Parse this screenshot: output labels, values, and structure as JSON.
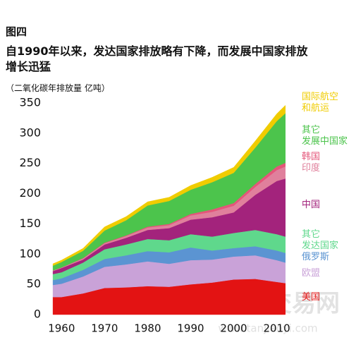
{
  "chart_data": {
    "type": "stacked-area",
    "figure_label": "图四",
    "title": "自1990年以来，发达国家排放略有下降，而发展中国家排放\n增长迅猛",
    "y_label": "（二氧化碳年排放量 亿吨）",
    "watermark": "中国碳交易网",
    "watermark_url": "www.tanjiaoyi.com",
    "x": [
      1958,
      1960,
      1965,
      1970,
      1975,
      1980,
      1985,
      1990,
      1995,
      2000,
      2005,
      2010,
      2012
    ],
    "xlim": [
      1957,
      2014
    ],
    "xticks": [
      1960,
      1970,
      1980,
      1990,
      2000,
      2010
    ],
    "ylim": [
      0,
      350
    ],
    "yticks": [
      0,
      50,
      100,
      150,
      200,
      250,
      300,
      350
    ],
    "grid": false,
    "series": [
      {
        "name": "美国",
        "color": "#e31313",
        "values": [
          29,
          29,
          35,
          44,
          45,
          47,
          46,
          50,
          53,
          58,
          59,
          54,
          52
        ]
      },
      {
        "name": "欧盟",
        "color": "#c9a2d8",
        "values": [
          20,
          22,
          28,
          35,
          38,
          41,
          38,
          40,
          38,
          38,
          39,
          36,
          34
        ]
      },
      {
        "name": "俄罗斯",
        "color": "#5b94d2",
        "values": [
          8,
          9,
          11,
          13,
          15,
          17,
          19,
          21,
          15,
          14,
          15,
          16,
          16
        ]
      },
      {
        "name": "其它\n发达国家",
        "color": "#5fd88c",
        "values": [
          10,
          10,
          12,
          16,
          18,
          20,
          20,
          22,
          23,
          25,
          27,
          27,
          27
        ]
      },
      {
        "name": "中国",
        "color": "#a3237c",
        "values": [
          5,
          7,
          5,
          8,
          11,
          15,
          20,
          24,
          32,
          34,
          58,
          88,
          96
        ]
      },
      {
        "name": "印度",
        "color": "#e0809c",
        "values": [
          1,
          1,
          2,
          2,
          3,
          4,
          5,
          7,
          9,
          11,
          13,
          18,
          20
        ]
      },
      {
        "name": "韩国",
        "color": "#e4567a",
        "values": [
          0,
          0,
          0.5,
          1,
          1,
          1.5,
          2,
          2.5,
          4,
          4.5,
          5,
          6,
          6
        ]
      },
      {
        "name": "其它\n发展中国家",
        "color": "#4cc44c",
        "values": [
          8,
          9,
          12,
          20,
          25,
          35,
          38,
          40,
          45,
          50,
          60,
          75,
          82
        ]
      },
      {
        "name": "国际航空\n和航运",
        "color": "#f0cc00",
        "values": [
          3,
          3,
          4,
          6,
          6,
          6,
          6,
          7,
          8,
          9,
          11,
          12,
          13
        ]
      }
    ]
  }
}
